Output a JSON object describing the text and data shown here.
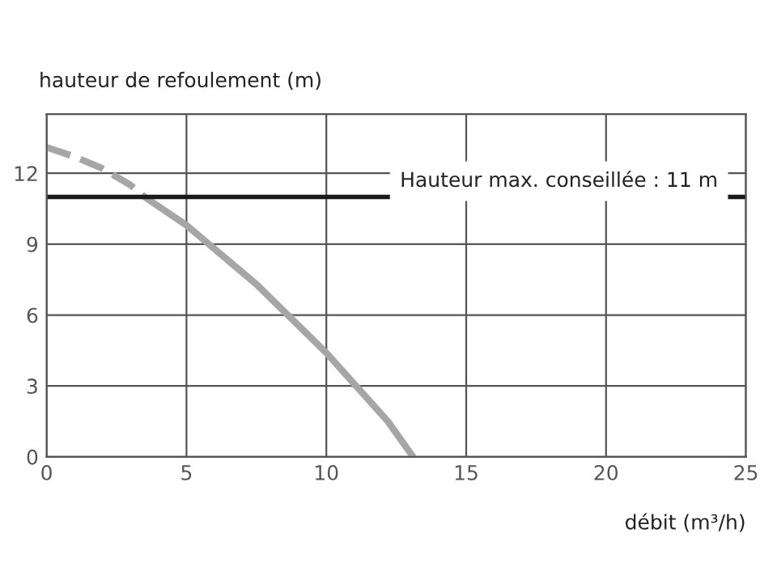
{
  "chart_data": {
    "type": "line",
    "xlabel": "débit (m³/h)",
    "ylabel": "hauteur de refoulement (m)",
    "xlim": [
      0,
      25
    ],
    "xticks": [
      0,
      5,
      10,
      15,
      20,
      25
    ],
    "ylim": [
      0,
      14.5
    ],
    "yticks": [
      0,
      3,
      6,
      9,
      12
    ],
    "grid": true,
    "marker": "none",
    "series": [
      {
        "color": "#a6a6a6",
        "line_style": "dashed",
        "x": [
          0,
          1,
          2,
          3,
          3.5
        ],
        "values": [
          13.1,
          12.7,
          12.2,
          11.5,
          11.0
        ]
      },
      {
        "color": "#a6a6a6",
        "line_style": "solid",
        "x": [
          3.5,
          5,
          7.5,
          10,
          12.2,
          13.1
        ],
        "values": [
          11.0,
          9.8,
          7.3,
          4.4,
          1.5,
          0
        ]
      }
    ],
    "ref_lines": [
      {
        "axis": "y",
        "value": 11,
        "label": "Hauteur max. conseillée : 11 m",
        "color": "#1a1a1a",
        "line_style": "solid"
      }
    ]
  }
}
